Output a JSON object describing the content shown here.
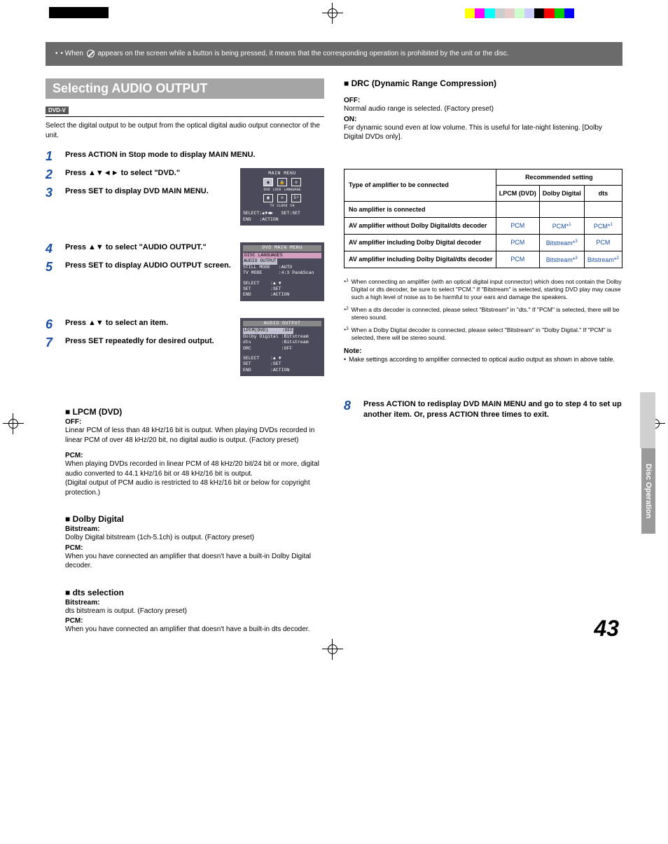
{
  "colorBar": [
    "#ffff00",
    "#ff00ff",
    "#00ffff",
    "#cccccc",
    "#e8cccc",
    "#ccffcc",
    "#ccccff",
    "#000000",
    "#ff0000",
    "#00cc00",
    "#0000ff",
    "#ffffff"
  ],
  "noteBox": {
    "prefix": "• When",
    "suffix": "appears on the screen while a button is being pressed, it means that the corresponding operation is prohibited by the unit or the disc."
  },
  "sectionTitle": "Selecting AUDIO OUTPUT",
  "badge": "DVD-V",
  "intro": "Select the digital output to be output from the optical digital audio output connector of the unit.",
  "steps": {
    "s1": "Press ACTION in Stop mode to display MAIN MENU.",
    "s2a": "Press ",
    "s2arrows": "▲▼◄►",
    "s2b": " to select \"DVD.\"",
    "s3": "Press SET to display DVD MAIN MENU.",
    "s4a": "Press ",
    "s4arrows": "▲▼",
    "s4b": " to select \"AUDIO OUTPUT.\"",
    "s5": "Press SET to display AUDIO OUTPUT screen.",
    "s6a": "Press ",
    "s6arrows": "▲▼",
    "s6b": " to select an item.",
    "s7": "Press SET repeatedly for desired output.",
    "s8": "Press ACTION to redisplay DVD MAIN MENU and go to step 4 to set up another item. Or, press ACTION three times to exit."
  },
  "osd1": {
    "title": "MAIN MENU",
    "labels1": [
      "DVD",
      "LOCK",
      "LANGUAGE"
    ],
    "labels2": [
      "TV",
      "CLOCK",
      "CH"
    ],
    "footer1": "SELECT:▲▼◄►   SET:SET",
    "footer2": "END   :ACTION"
  },
  "osd2": {
    "title": "DVD MAIN MENU",
    "rows": [
      "DISC LANGUAGES",
      "AUDIO OUTPUT",
      "STILL MODE   :AUTO",
      "TV MODE      :4:3 Pan&Scan"
    ],
    "footer": [
      "SELECT    :▲ ▼",
      "SET       :SET",
      "END       :ACTION"
    ]
  },
  "osd3": {
    "title": "AUDIO OUTPUT",
    "rows": [
      "LPCM(DVD)     :OFF",
      "Dolby Digital :Bitstream",
      "dts           :Bitstream",
      "DRC           :OFF"
    ],
    "footer": [
      "SELECT    :▲ ▼",
      "SET       :SET",
      "END       :ACTION"
    ]
  },
  "lpcm": {
    "h": "LPCM (DVD)",
    "off_l": "OFF:",
    "off": "Linear PCM of less than 48 kHz/16 bit is output. When playing DVDs recorded in linear PCM of over 48 kHz/20 bit, no digital audio is output. (Factory preset)",
    "pcm_l": "PCM:",
    "pcm": "When playing DVDs recorded in linear PCM of 48 kHz/20 bit/24 bit or more, digital audio converted to 44.1 kHz/16 bit or 48 kHz/16 bit is output.",
    "pcm2": "(Digital output of PCM audio is restricted to 48 kHz/16 bit or below for copyright protection.)"
  },
  "dolby": {
    "h": "Dolby Digital",
    "bs_l": "Bitstream:",
    "bs": "Dolby Digital bitstream (1ch-5.1ch) is output. (Factory preset)",
    "pcm_l": "PCM:",
    "pcm": "When you have connected an amplifier that doesn't have a built-in Dolby Digital decoder."
  },
  "dts": {
    "h": "dts selection",
    "bs_l": "Bitstream:",
    "bs": "dts bitstream is output. (Factory preset)",
    "pcm_l": "PCM:",
    "pcm": "When you have connected an amplifier that doesn't have a built-in dts decoder."
  },
  "drc": {
    "h": "DRC (Dynamic Range Compression)",
    "off_l": "OFF:",
    "off": "Normal audio range is selected. (Factory preset)",
    "on_l": "ON:",
    "on": "For dynamic sound even at low volume. This is useful for late-night listening. [Dolby Digital DVDs only]."
  },
  "table": {
    "h1": "Type of amplifier to be connected",
    "h2": "Recommended setting",
    "cols": [
      "LPCM (DVD)",
      "Dolby Digital",
      "dts"
    ],
    "rows": [
      {
        "label": "No amplifier is connected",
        "cells": [
          "",
          "",
          ""
        ]
      },
      {
        "label": "AV amplifier without Dolby Digital/dts decoder",
        "cells": [
          "PCM",
          "PCM*1",
          "PCM*1"
        ]
      },
      {
        "label": "AV amplifier including Dolby Digital decoder",
        "cells": [
          "PCM",
          "Bitstream*3",
          "PCM"
        ]
      },
      {
        "label": "AV amplifier including Dolby Digital/dts decoder",
        "cells": [
          "PCM",
          "Bitstream*3",
          "Bitstream*2"
        ]
      }
    ]
  },
  "footnotes": {
    "f1": "When connecting an amplifier (with an optical digital input connector) which does not contain the Dolby Digital or dts decoder, be sure to select \"PCM.\" If \"Bitstream\" is selected, starting DVD play may cause such a high level of noise as to be harmful to your ears and damage the speakers.",
    "f2": "When a dts decoder is connected, please select \"Bitstream\" in \"dts.\" If \"PCM\" is selected, there will be stereo sound.",
    "f3": "When a Dolby Digital decoder is connected, please select \"Bitstream\" in \"Dolby Digital.\" If \"PCM\" is selected, there will be stereo sound.",
    "noteH": "Note:",
    "noteBody": "Make settings according to amplifier connected to optical audio output as shown in above table."
  },
  "sideTab": "Disc Operation",
  "pageNum": "43"
}
